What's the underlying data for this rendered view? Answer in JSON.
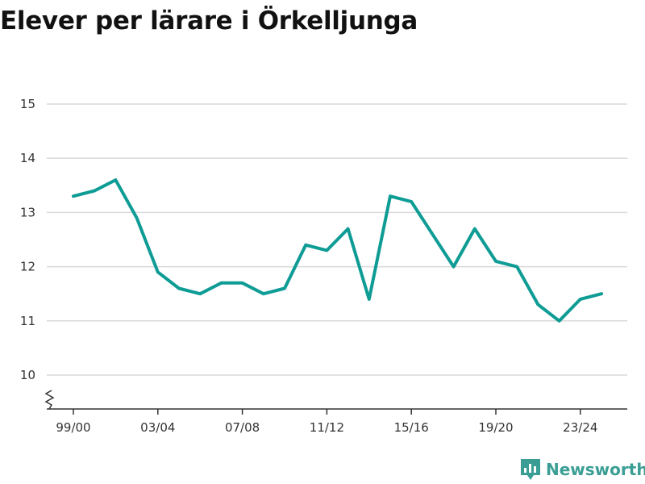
{
  "page": {
    "title": "Elever per lärare i Örkelljunga",
    "brand": "Newsworthy"
  },
  "colors": {
    "line": "#0e9c95",
    "grid": "#d9d9d9",
    "axis": "#333333",
    "brand": "#3a9e95"
  },
  "icons": {
    "brand_logo": "bar-chart-speech-bubble-icon",
    "axis_break": "zigzag-axis-break-icon"
  },
  "chart_data": {
    "type": "line",
    "title": "Elever per lärare i Örkelljunga",
    "xlabel": "",
    "ylabel": "",
    "ylim": [
      10,
      15
    ],
    "yticks": [
      10,
      11,
      12,
      13,
      14,
      15
    ],
    "y_axis_break": true,
    "grid": "horizontal",
    "categories": [
      "99/00",
      "00/01",
      "01/02",
      "02/03",
      "03/04",
      "04/05",
      "05/06",
      "06/07",
      "07/08",
      "08/09",
      "09/10",
      "10/11",
      "11/12",
      "12/13",
      "13/14",
      "14/15",
      "15/16",
      "16/17",
      "17/18",
      "18/19",
      "19/20",
      "20/21",
      "21/22",
      "22/23",
      "23/24",
      "24/25"
    ],
    "xtick_labels": [
      "99/00",
      "03/04",
      "07/08",
      "11/12",
      "15/16",
      "19/20",
      "23/24"
    ],
    "series": [
      {
        "values": [
          13.3,
          13.4,
          13.6,
          12.9,
          11.9,
          11.6,
          11.5,
          11.7,
          11.7,
          11.5,
          11.6,
          12.4,
          12.3,
          12.7,
          11.4,
          13.3,
          13.2,
          12.6,
          12.0,
          12.7,
          12.1,
          12.0,
          11.3,
          11.0,
          11.4,
          11.5
        ]
      }
    ]
  }
}
